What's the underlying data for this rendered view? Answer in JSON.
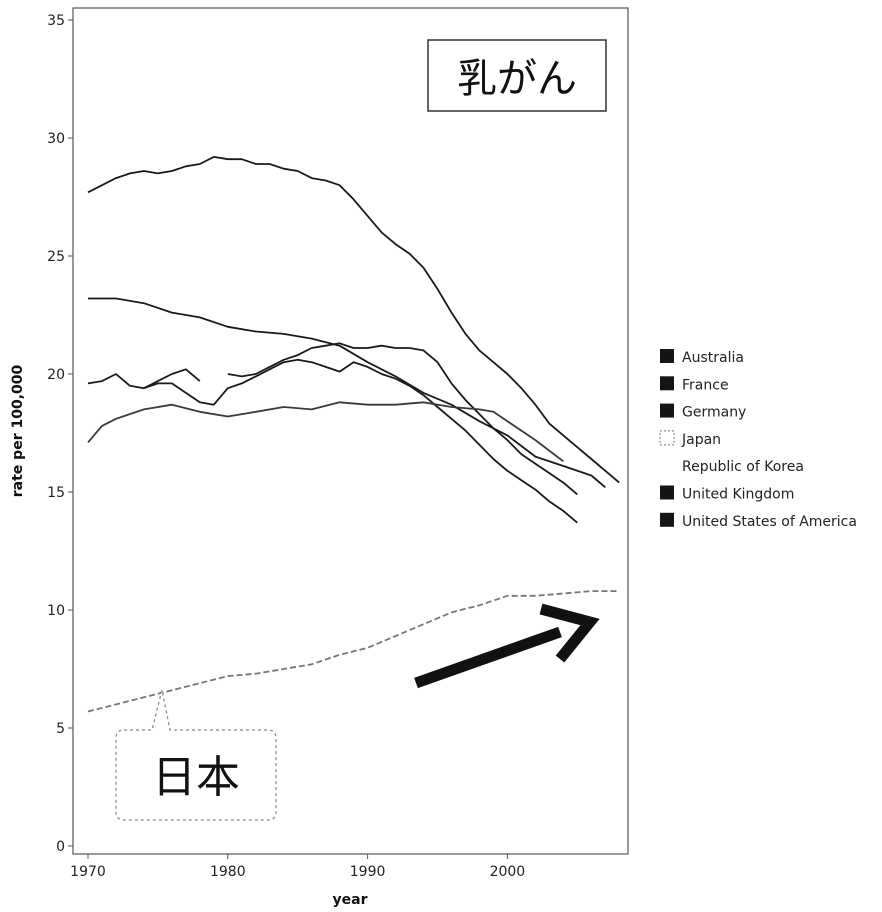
{
  "chart_data": {
    "type": "line",
    "title": "",
    "xlabel": "year",
    "ylabel": "rate per 100,000",
    "xlim": [
      1969,
      2009
    ],
    "ylim": [
      0,
      35
    ],
    "x_ticks": [
      1970,
      1980,
      1990,
      2000
    ],
    "y_ticks": [
      0,
      5,
      10,
      15,
      20,
      25,
      30,
      35
    ],
    "grid": false,
    "legend_position": "right",
    "legend": [
      "Australia",
      "France",
      "Germany",
      "Japan",
      "Republic of Korea",
      "United Kingdom",
      "United States of America"
    ],
    "series": [
      {
        "name": "United Kingdom",
        "color": "#1a1a1a",
        "x": [
          1970,
          1971,
          1972,
          1973,
          1974,
          1975,
          1976,
          1977,
          1978,
          1979,
          1980,
          1981,
          1982,
          1983,
          1984,
          1985,
          1986,
          1987,
          1988,
          1989,
          1990,
          1991,
          1992,
          1993,
          1994,
          1995,
          1996,
          1997,
          1998,
          1999,
          2000,
          2001,
          2002,
          2003,
          2004,
          2005,
          2006,
          2007,
          2008
        ],
        "values": [
          27.7,
          28.0,
          28.3,
          28.5,
          28.6,
          28.5,
          28.6,
          28.8,
          28.9,
          29.2,
          29.1,
          29.1,
          28.9,
          28.9,
          28.7,
          28.6,
          28.3,
          28.2,
          28.0,
          27.4,
          26.7,
          26.0,
          25.5,
          25.1,
          24.5,
          23.6,
          22.6,
          21.7,
          21.0,
          20.5,
          20.0,
          19.4,
          18.7,
          17.9,
          17.4,
          16.9,
          16.4,
          15.9,
          15.4
        ]
      },
      {
        "name": "United States of America",
        "color": "#1a1a1a",
        "x": [
          1970,
          1972,
          1974,
          1976,
          1978,
          1980,
          1982,
          1984,
          1986,
          1988,
          1990,
          1992,
          1994,
          1996,
          1998,
          2000,
          2002,
          2004,
          2006,
          2007
        ],
        "values": [
          23.2,
          23.2,
          23.0,
          22.6,
          22.4,
          22.0,
          21.8,
          21.7,
          21.5,
          21.2,
          20.5,
          19.9,
          19.2,
          18.7,
          18.0,
          17.4,
          16.5,
          16.1,
          15.7,
          15.2
        ]
      },
      {
        "name": "France",
        "color": "#1a1a1a",
        "x": [
          1970,
          1971,
          1972,
          1973,
          1974,
          1975,
          1976,
          1977,
          1978
        ],
        "values": [
          19.6,
          19.7,
          20.0,
          19.5,
          19.4,
          19.7,
          20.0,
          20.2,
          19.7
        ]
      },
      {
        "name": "Germany",
        "color": "#1a1a1a",
        "x": [
          1974,
          1975,
          1976,
          1977,
          1978,
          1979,
          1980,
          1981,
          1982,
          1983,
          1984,
          1985,
          1986,
          1987,
          1988,
          1989,
          1990,
          1991,
          1992,
          1993,
          1994,
          1995,
          1996,
          1997,
          1998,
          1999,
          2000,
          2001,
          2002,
          2003,
          2004,
          2005
        ],
        "values": [
          19.4,
          19.6,
          19.6,
          19.2,
          18.8,
          18.7,
          19.4,
          19.6,
          19.9,
          20.2,
          20.5,
          20.6,
          20.5,
          20.3,
          20.1,
          20.5,
          20.3,
          20.0,
          19.8,
          19.5,
          19.1,
          18.6,
          18.1,
          17.6,
          17.0,
          16.4,
          15.9,
          15.5,
          15.1,
          14.6,
          14.2,
          13.7
        ]
      },
      {
        "name": "Australia",
        "color": "#1a1a1a",
        "x": [
          1980,
          1981,
          1982,
          1983,
          1984,
          1985,
          1986,
          1987,
          1988,
          1989,
          1990,
          1991,
          1992,
          1993,
          1994,
          1995,
          1996,
          1997,
          1998,
          1999,
          2000,
          2001,
          2002,
          2003,
          2004,
          2005
        ],
        "values": [
          20.0,
          19.9,
          20.0,
          20.3,
          20.6,
          20.8,
          21.1,
          21.2,
          21.3,
          21.1,
          21.1,
          21.2,
          21.1,
          21.1,
          21.0,
          20.5,
          19.6,
          18.9,
          18.3,
          17.7,
          17.2,
          16.6,
          16.2,
          15.8,
          15.4,
          14.9
        ]
      },
      {
        "name": "Republic of Korea",
        "color": "#3a3a3a",
        "x": [
          1970,
          1971,
          1972,
          1974,
          1976,
          1978,
          1980,
          1982,
          1984,
          1986,
          1988,
          1990,
          1992,
          1994,
          1996,
          1998,
          1999,
          2000,
          2002,
          2004
        ],
        "values": [
          17.1,
          17.8,
          18.1,
          18.5,
          18.7,
          18.4,
          18.2,
          18.4,
          18.6,
          18.5,
          18.8,
          18.7,
          18.7,
          18.8,
          18.6,
          18.5,
          18.4,
          18.0,
          17.2,
          16.3
        ]
      },
      {
        "name": "Japan",
        "color": "#777777",
        "dash": "6 3",
        "x": [
          1970,
          1972,
          1974,
          1976,
          1978,
          1980,
          1982,
          1984,
          1986,
          1988,
          1990,
          1992,
          1994,
          1996,
          1998,
          2000,
          2002,
          2004,
          2006,
          2008
        ],
        "values": [
          5.7,
          6.0,
          6.3,
          6.6,
          6.9,
          7.2,
          7.3,
          7.5,
          7.7,
          8.1,
          8.4,
          8.9,
          9.4,
          9.9,
          10.2,
          10.6,
          10.6,
          10.7,
          10.8,
          10.8
        ]
      }
    ],
    "annotations": {
      "title_box": "乳がん",
      "callout": "日本"
    }
  }
}
